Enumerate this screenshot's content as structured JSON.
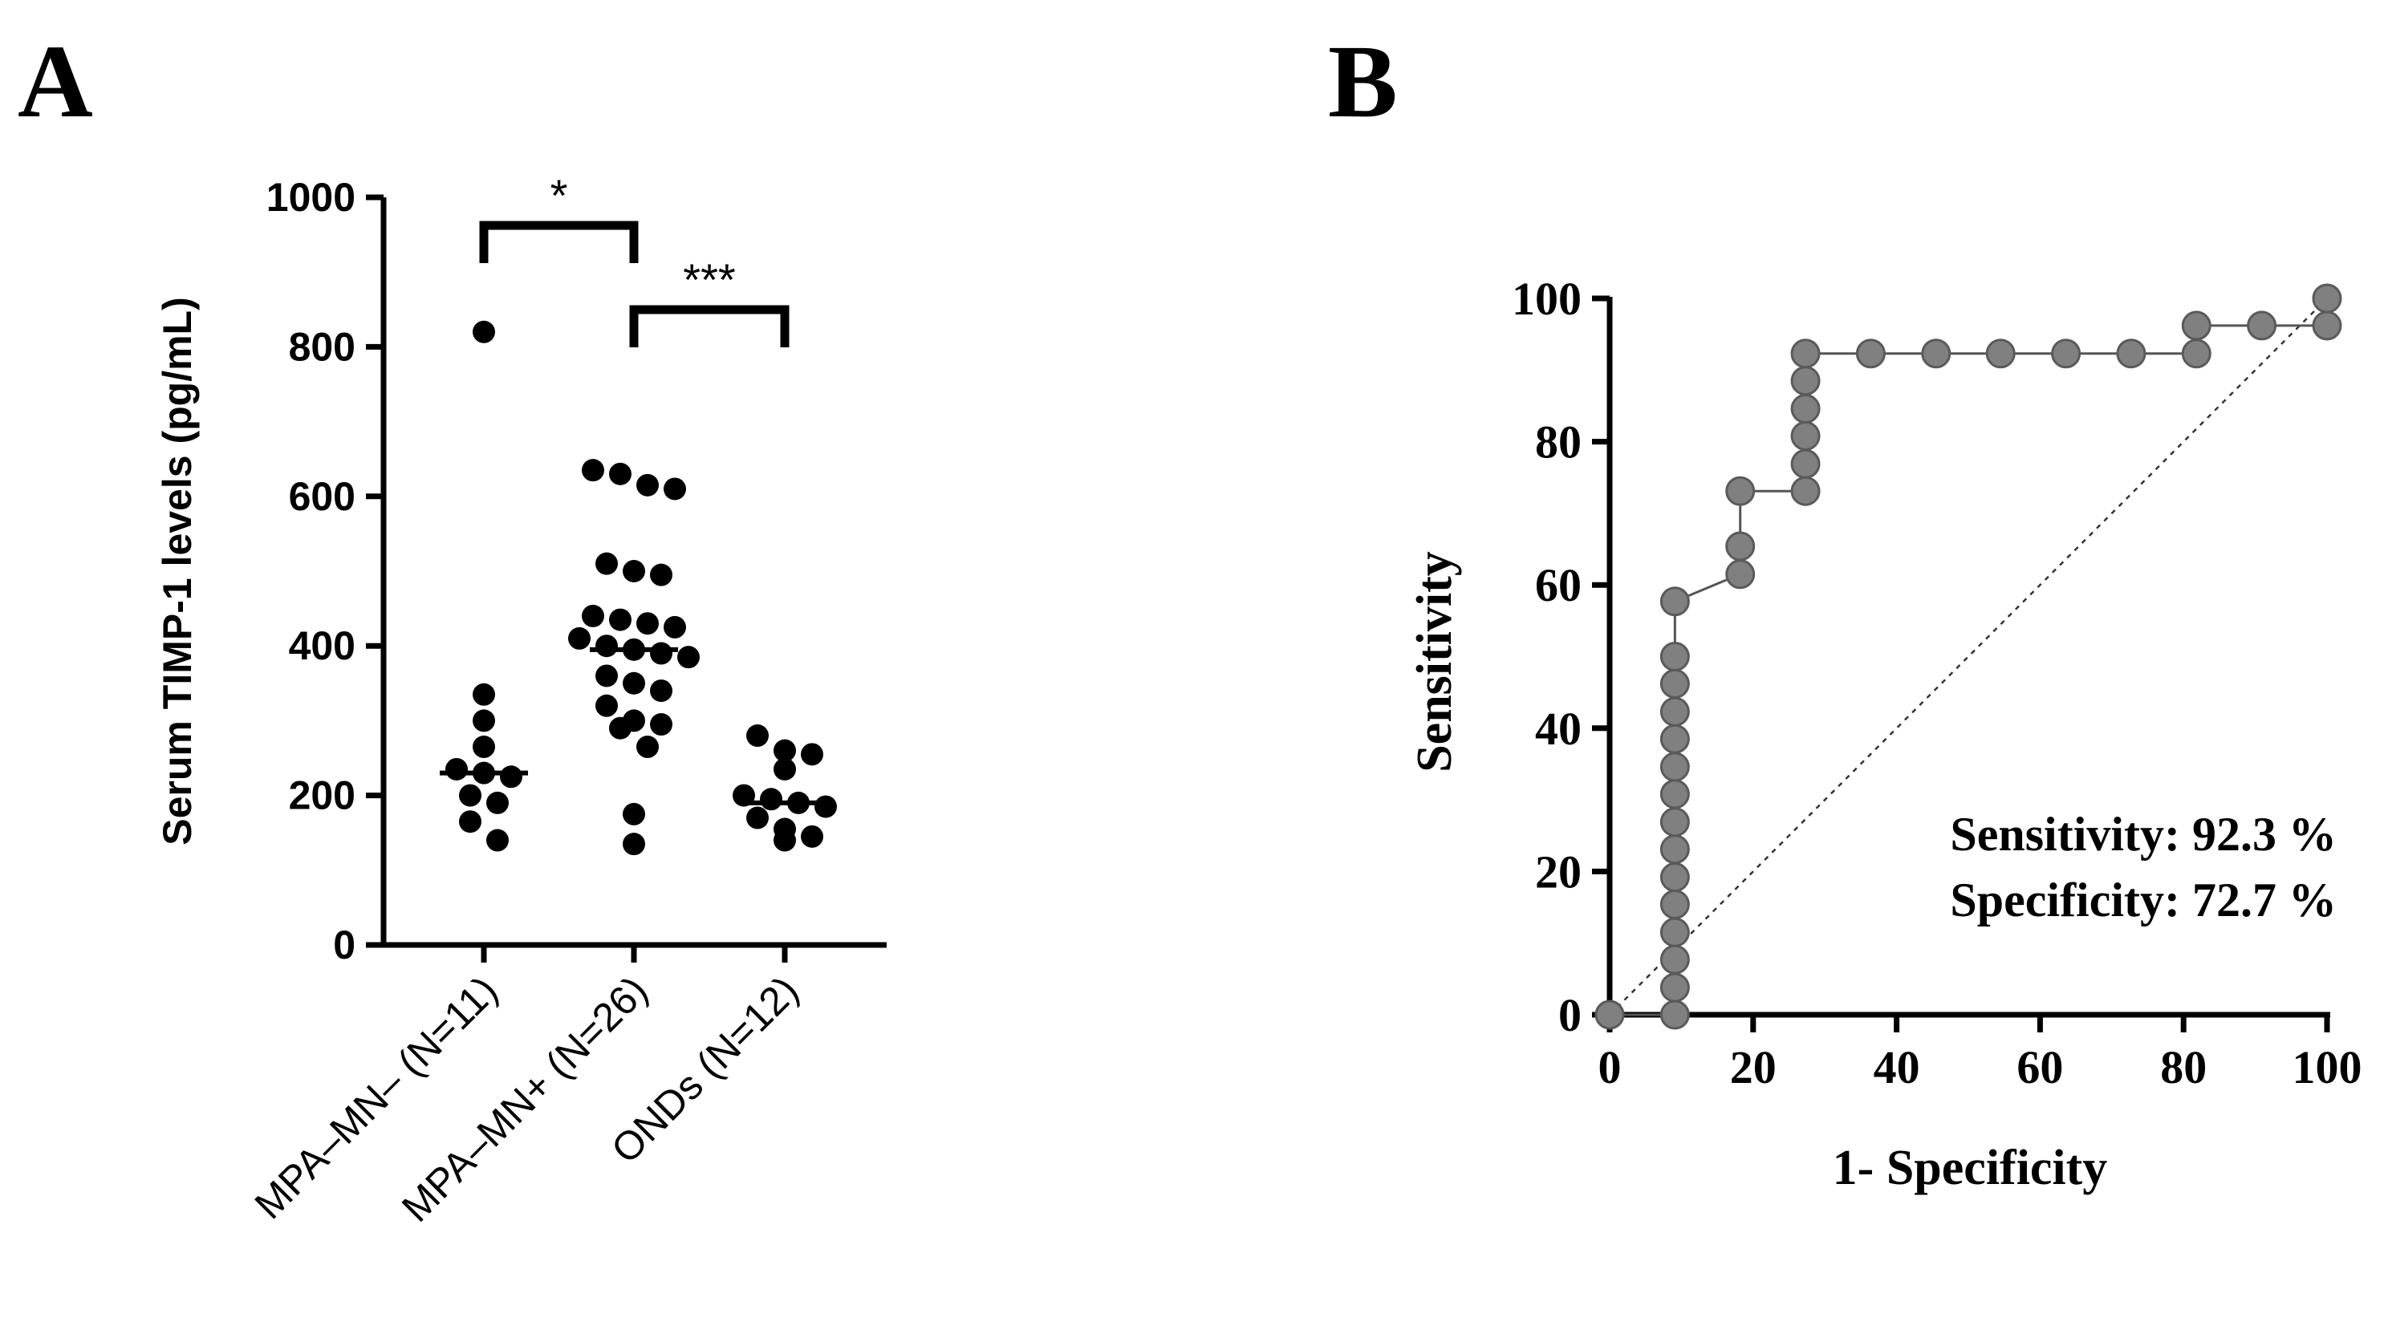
{
  "panels": {
    "a": {
      "letter": "A"
    },
    "b": {
      "letter": "B"
    }
  },
  "chart_data": [
    {
      "type": "scatter",
      "panel": "A",
      "ylabel": "Serum TIMP-1 levels (pg/mL)",
      "xlabel": "",
      "ylim": [
        0,
        1000
      ],
      "yticks": [
        0,
        200,
        400,
        600,
        800,
        1000
      ],
      "categories": [
        "MPA–MN– (N=11)",
        "MPA–MN+ (N=26)",
        "ONDs (N=12)"
      ],
      "groups": [
        {
          "values": [
            820,
            335,
            300,
            265,
            235,
            230,
            225,
            200,
            190,
            165,
            140
          ],
          "median": 230
        },
        {
          "values": [
            635,
            630,
            615,
            610,
            510,
            500,
            495,
            440,
            435,
            430,
            425,
            410,
            400,
            395,
            390,
            385,
            360,
            350,
            340,
            320,
            300,
            295,
            290,
            265,
            175,
            135
          ],
          "median": 395
        },
        {
          "values": [
            280,
            260,
            255,
            235,
            200,
            195,
            190,
            185,
            170,
            155,
            145,
            140
          ],
          "median": 190
        }
      ],
      "comparisons": [
        {
          "from": 0,
          "to": 1,
          "label": "*"
        },
        {
          "from": 1,
          "to": 2,
          "label": "***"
        }
      ],
      "colors": {
        "points": "#000000"
      }
    },
    {
      "type": "line",
      "panel": "B",
      "xlabel": "1- Specificity",
      "ylabel": "Sensitivity",
      "xlim": [
        0,
        100
      ],
      "ylim": [
        0,
        100
      ],
      "xticks": [
        0,
        20,
        40,
        60,
        80,
        100
      ],
      "yticks": [
        0,
        20,
        40,
        60,
        80,
        100
      ],
      "series": [
        {
          "x": [
            0,
            9.1,
            9.1,
            9.1,
            9.1,
            9.1,
            9.1,
            9.1,
            9.1,
            9.1,
            9.1,
            9.1,
            9.1,
            9.1,
            9.1,
            9.1,
            18.2,
            18.2,
            18.2,
            27.3,
            27.3,
            27.3,
            27.3,
            27.3,
            27.3,
            36.4,
            45.5,
            54.5,
            63.6,
            72.7,
            81.8,
            81.8,
            90.9,
            100,
            100
          ],
          "y": [
            0,
            0,
            3.8,
            7.7,
            11.5,
            15.4,
            19.2,
            23.1,
            26.9,
            30.8,
            34.6,
            38.5,
            42.3,
            46.2,
            50,
            57.7,
            61.5,
            65.4,
            73.1,
            73.1,
            76.9,
            80.8,
            84.6,
            88.5,
            92.3,
            92.3,
            92.3,
            92.3,
            92.3,
            92.3,
            92.3,
            96.2,
            96.2,
            96.2,
            100
          ]
        }
      ],
      "reference_line": {
        "from": [
          0,
          0
        ],
        "to": [
          100,
          100
        ],
        "style": "dotted"
      },
      "annotations": [
        "Sensitivity: 92.3 %",
        "Specificity: 72.7 %"
      ],
      "colors": {
        "points": "#808080",
        "point_stroke": "#5a5a5a",
        "line": "#555555"
      }
    }
  ]
}
